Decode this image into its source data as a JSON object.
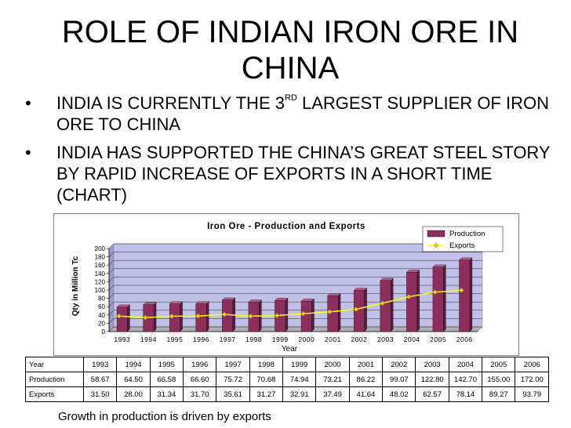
{
  "slide": {
    "title_line1": "ROLE OF INDIAN IRON ORE IN",
    "title_line2": "CHINA",
    "bullet1_pre": "INDIA IS CURRENTLY THE 3",
    "bullet1_sup": "RD",
    "bullet1_post": " LARGEST SUPPLIER OF IRON ORE TO CHINA",
    "bullet2": "INDIA HAS SUPPORTED THE CHINA’S GREAT STEEL STORY BY RAPID INCREASE OF EXPORTS IN A SHORT TIME  (CHART)",
    "bullet_marker": "•",
    "footnote": "Growth in production is driven by exports"
  },
  "chart_data": {
    "type": "bar",
    "title": "Iron Ore - Production and Exports",
    "xlabel": "Year",
    "ylabel": "Qty in Million Tc",
    "ylim": [
      0,
      200
    ],
    "yticks": [
      0,
      20,
      40,
      60,
      80,
      100,
      120,
      140,
      160,
      180,
      200
    ],
    "grid": true,
    "legend_position": "top-right",
    "categories": [
      "1993",
      "1994",
      "1995",
      "1996",
      "1997",
      "1998",
      "1999",
      "2000",
      "2001",
      "2002",
      "2003",
      "2004",
      "2005",
      "2006"
    ],
    "series": [
      {
        "name": "Production",
        "type": "bar",
        "color": "#993366",
        "values": [
          58.67,
          64.5,
          66.58,
          66.6,
          75.72,
          70.68,
          74.94,
          73.21,
          86.22,
          99.07,
          122.8,
          142.7,
          155.0,
          172.0
        ]
      },
      {
        "name": "Exports",
        "type": "line",
        "color": "#FFFF00",
        "values": [
          31.5,
          28.0,
          31.34,
          31.7,
          35.61,
          31.27,
          32.91,
          37.49,
          41.64,
          48.02,
          62.57,
          78.14,
          89.27,
          93.79
        ]
      }
    ],
    "plot_bg": "#C0C0E8"
  },
  "table": {
    "header_label": "Year",
    "header": [
      "1993",
      "1994",
      "1995",
      "1996",
      "1997",
      "1998",
      "1999",
      "2000",
      "2001",
      "2002",
      "2003",
      "2004",
      "2005",
      "2006"
    ],
    "rows": [
      {
        "label": "Production",
        "values": [
          "58.67",
          "64.50",
          "66.58",
          "66.60",
          "75.72",
          "70.68",
          "74.94",
          "73.21",
          "86.22",
          "99.07",
          "122.80",
          "142.70",
          "155.00",
          "172.00"
        ]
      },
      {
        "label": "Exports",
        "values": [
          "31.50",
          "28.00",
          "31.34",
          "31.70",
          "35.61",
          "31.27",
          "32.91",
          "37.49",
          "41.64",
          "48.02",
          "62.57",
          "78.14",
          "89.27",
          "93.79"
        ]
      }
    ]
  }
}
